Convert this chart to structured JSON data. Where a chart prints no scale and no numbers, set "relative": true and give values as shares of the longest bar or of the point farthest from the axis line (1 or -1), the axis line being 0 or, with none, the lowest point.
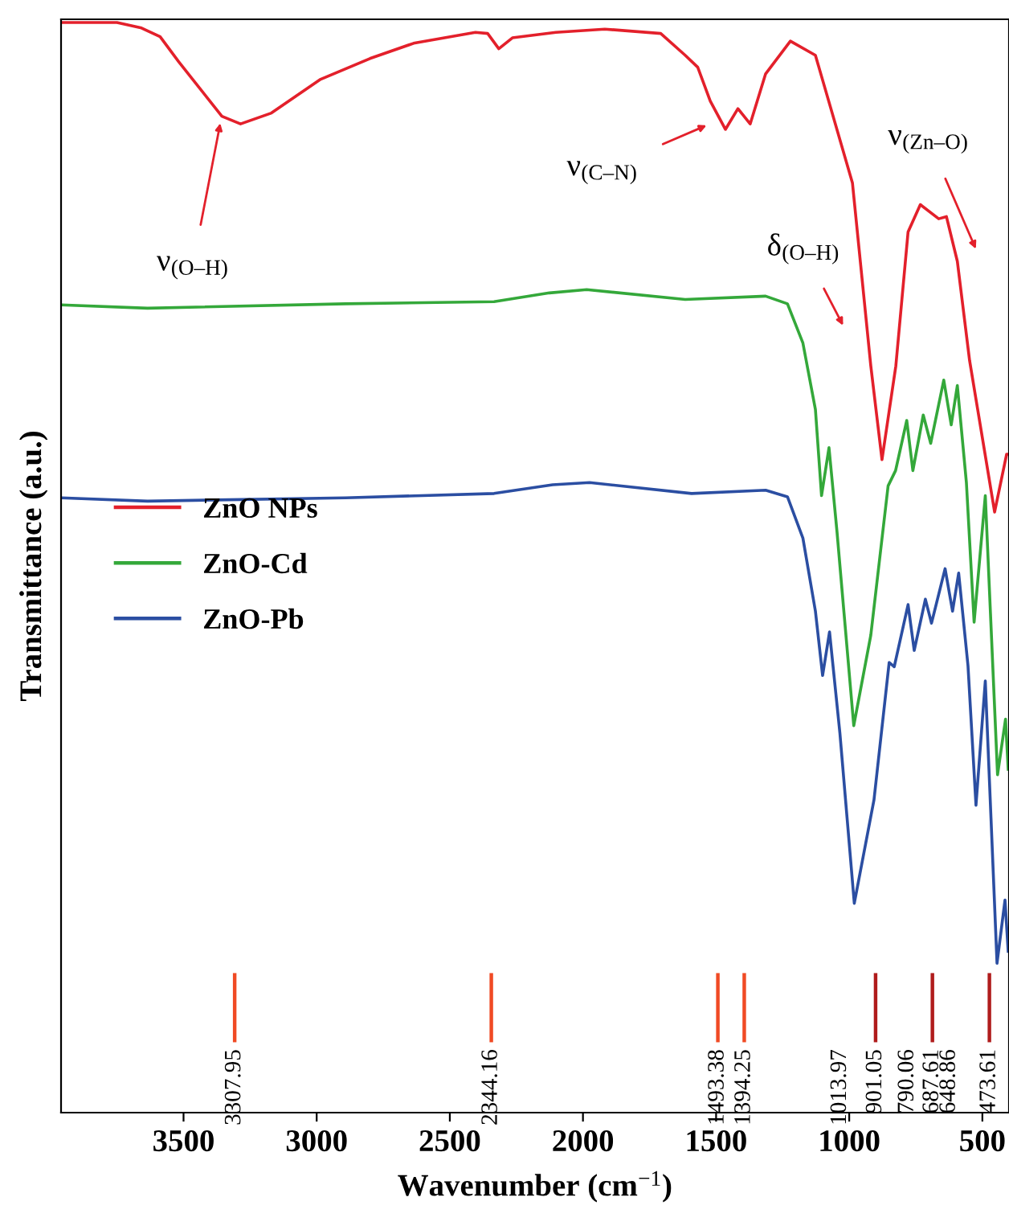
{
  "chart_data": {
    "type": "line",
    "relative": true,
    "xlabel": "Wavenumber (cm$^{−1}$)",
    "ylabel": "Transmittance (a.u.)",
    "xlim": [
      3960,
      400
    ],
    "xticks": [
      3500,
      3000,
      2500,
      2000,
      1500,
      1000,
      500
    ],
    "tick_labels": "x",
    "grid": false,
    "legend": "left",
    "line_style": "solid",
    "marker": "none",
    "series": [
      {
        "name": "ZnO NPs",
        "color": "#e3202b",
        "x": [
          3959,
          3750,
          3658,
          3588,
          3518,
          3356,
          3286,
          3170,
          2985,
          2800,
          2636,
          2404,
          2358,
          2316,
          2265,
          2102,
          1918,
          1708,
          1616,
          1569,
          1522,
          1465,
          1418,
          1372,
          1314,
          1221,
          1127,
          988,
          919,
          877,
          825,
          779,
          733,
          664,
          635,
          594,
          548,
          454,
          409,
          400
        ],
        "values": [
          1.0,
          1.0,
          0.995,
          0.987,
          0.964,
          0.914,
          0.907,
          0.917,
          0.948,
          0.967,
          0.981,
          0.991,
          0.99,
          0.976,
          0.986,
          0.991,
          0.994,
          0.99,
          0.97,
          0.959,
          0.928,
          0.902,
          0.921,
          0.907,
          0.953,
          0.983,
          0.97,
          0.853,
          0.685,
          0.599,
          0.685,
          0.808,
          0.833,
          0.82,
          0.822,
          0.781,
          0.69,
          0.551,
          0.604,
          0.604
        ]
      },
      {
        "name": "ZnO-Cd",
        "color": "#34a83a",
        "x": [
          3959,
          3635,
          2892,
          2334,
          2126,
          1986,
          1616,
          1314,
          1232,
          1174,
          1127,
          1104,
          1076,
          1046,
          983,
          919,
          854,
          826,
          784,
          761,
          722,
          694,
          645,
          617,
          594,
          560,
          531,
          489,
          443,
          413,
          403
        ],
        "values": [
          0.741,
          0.738,
          0.742,
          0.744,
          0.752,
          0.755,
          0.746,
          0.749,
          0.742,
          0.706,
          0.645,
          0.566,
          0.61,
          0.533,
          0.355,
          0.438,
          0.575,
          0.589,
          0.635,
          0.589,
          0.64,
          0.614,
          0.672,
          0.631,
          0.667,
          0.578,
          0.45,
          0.566,
          0.31,
          0.361,
          0.315
        ]
      },
      {
        "name": "ZnO-Pb",
        "color": "#2b4ea2",
        "x": [
          3959,
          3635,
          2892,
          2334,
          2114,
          1975,
          1592,
          1314,
          1232,
          1174,
          1127,
          1100,
          1074,
          1035,
          981,
          907,
          850,
          831,
          779,
          756,
          714,
          691,
          640,
          612,
          589,
          554,
          524,
          489,
          445,
          415,
          403
        ],
        "values": [
          0.564,
          0.561,
          0.564,
          0.568,
          0.576,
          0.578,
          0.568,
          0.571,
          0.565,
          0.527,
          0.46,
          0.401,
          0.441,
          0.348,
          0.192,
          0.287,
          0.413,
          0.409,
          0.466,
          0.424,
          0.471,
          0.449,
          0.499,
          0.46,
          0.495,
          0.41,
          0.282,
          0.396,
          0.137,
          0.195,
          0.148
        ]
      }
    ],
    "ref_lines": [
      {
        "axis": "x",
        "value": 3307.95,
        "label": "3307.95",
        "color": "#f04a24"
      },
      {
        "axis": "x",
        "value": 2344.16,
        "label": "2344.16",
        "color": "#f04a24"
      },
      {
        "axis": "x",
        "value": 1493.38,
        "label": "1493.38",
        "color": "#f04a24"
      },
      {
        "axis": "x",
        "value": 1394.25,
        "label": "1394.25",
        "color": "#f04a24"
      },
      {
        "axis": "x",
        "value": 901.05,
        "label": "901.05",
        "color": "#b01c1c"
      },
      {
        "axis": "x",
        "value": 687.61,
        "label": "687.61",
        "color": "#b01c1c"
      },
      {
        "axis": "x",
        "value": 473.61,
        "label": "473.61",
        "color": "#b01c1c"
      }
    ],
    "annotations": [
      "ν$_{(O–H)}$",
      "ν$_{(C–N)}$",
      "δ$_{(O–H)}$",
      "ν$_{(Zn–O)}$",
      "1013.97",
      "790.06",
      "648.86"
    ]
  }
}
